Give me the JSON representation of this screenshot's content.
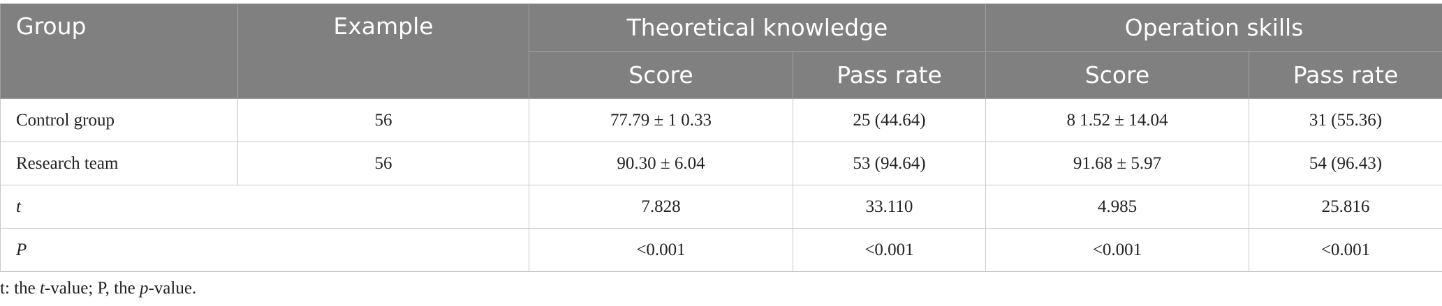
{
  "header": {
    "row1": [
      "Group",
      "Example",
      "Theoretical knowledge",
      "Operation skills"
    ],
    "row2": [
      "Score",
      "Pass rate",
      "Score",
      "Pass rate"
    ]
  },
  "table": {
    "rows": [
      [
        "Control group",
        "56",
        "77.79 ± 1 0.33",
        "25 (44.64)",
        "8 1.52 ± 14.04",
        "31 (55.36)"
      ],
      [
        "Research team",
        "56",
        "90.30 ± 6.04",
        "53 (94.64)",
        "91.68 ± 5.97",
        "54 (96.43)"
      ],
      [
        "t",
        "7.828",
        "33.110",
        "4.985",
        "25.816"
      ],
      [
        "P",
        "<0.001",
        "<0.001",
        "<0.001",
        "<0.001"
      ]
    ]
  },
  "footnote": [
    "t: the ",
    "t",
    "-value; P, the ",
    "p",
    "-value."
  ]
}
